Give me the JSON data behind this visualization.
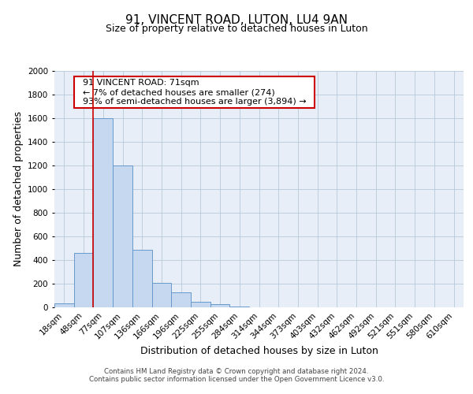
{
  "title": "91, VINCENT ROAD, LUTON, LU4 9AN",
  "subtitle": "Size of property relative to detached houses in Luton",
  "xlabel": "Distribution of detached houses by size in Luton",
  "ylabel": "Number of detached properties",
  "bar_labels": [
    "18sqm",
    "48sqm",
    "77sqm",
    "107sqm",
    "136sqm",
    "166sqm",
    "196sqm",
    "225sqm",
    "255sqm",
    "284sqm",
    "314sqm",
    "344sqm",
    "373sqm",
    "403sqm",
    "432sqm",
    "462sqm",
    "492sqm",
    "521sqm",
    "551sqm",
    "580sqm",
    "610sqm"
  ],
  "bar_values": [
    35,
    460,
    1600,
    1200,
    490,
    210,
    130,
    50,
    30,
    10,
    0,
    0,
    0,
    0,
    0,
    0,
    0,
    0,
    0,
    0,
    0
  ],
  "bar_color": "#c5d8f0",
  "bar_edge_color": "#6699cc",
  "ylim": [
    0,
    2000
  ],
  "yticks": [
    0,
    200,
    400,
    600,
    800,
    1000,
    1200,
    1400,
    1600,
    1800,
    2000
  ],
  "vline_x": 2.0,
  "vline_color": "#cc0000",
  "annotation_title": "91 VINCENT ROAD: 71sqm",
  "annotation_line1": "← 7% of detached houses are smaller (274)",
  "annotation_line2": "93% of semi-detached houses are larger (3,894) →",
  "annotation_box_color": "#ffffff",
  "annotation_box_edge": "#cc0000",
  "footer1": "Contains HM Land Registry data © Crown copyright and database right 2024.",
  "footer2": "Contains public sector information licensed under the Open Government Licence v3.0.",
  "bg_color": "#ffffff",
  "plot_bg_color": "#e8eef8",
  "grid_color": "#b8c8d8",
  "title_fontsize": 11,
  "subtitle_fontsize": 9,
  "axis_label_fontsize": 9,
  "tick_fontsize": 7.5,
  "footer_fontsize": 6.2
}
